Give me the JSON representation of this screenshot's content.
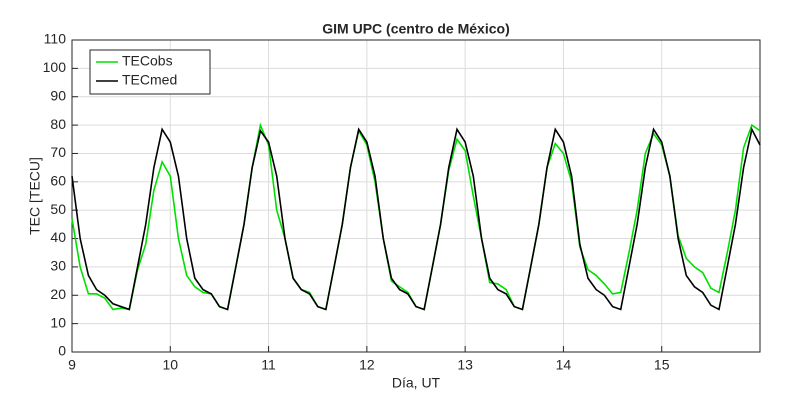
{
  "chart_data": {
    "type": "line",
    "title": "GIM UPC (centro de México)",
    "x_label": "Día, UT",
    "y_label": "TEC [TECU]",
    "x": [
      9,
      9.083,
      9.167,
      9.25,
      9.333,
      9.417,
      9.5,
      9.583,
      9.667,
      9.75,
      9.833,
      9.917,
      10,
      10.083,
      10.167,
      10.25,
      10.333,
      10.417,
      10.5,
      10.583,
      10.667,
      10.75,
      10.833,
      10.917,
      11,
      11.083,
      11.167,
      11.25,
      11.333,
      11.417,
      11.5,
      11.583,
      11.667,
      11.75,
      11.833,
      11.917,
      12,
      12.083,
      12.167,
      12.25,
      12.333,
      12.417,
      12.5,
      12.583,
      12.667,
      12.75,
      12.833,
      12.917,
      13,
      13.083,
      13.167,
      13.25,
      13.333,
      13.417,
      13.5,
      13.583,
      13.667,
      13.75,
      13.833,
      13.917,
      14,
      14.083,
      14.167,
      14.25,
      14.333,
      14.417,
      14.5,
      14.583,
      14.667,
      14.75,
      14.833,
      14.917,
      15,
      15.083,
      15.167,
      15.25,
      15.333,
      15.417,
      15.5,
      15.583,
      15.667,
      15.75,
      15.833,
      15.917,
      16
    ],
    "series": [
      {
        "name": "TECobs",
        "color": "#00e000",
        "values": [
          47,
          30,
          20.5,
          20.5,
          19,
          15,
          15.5,
          15,
          29,
          38,
          57,
          67,
          62,
          40,
          27,
          23,
          21,
          20.5,
          16,
          15,
          30,
          45,
          65,
          80,
          73,
          50,
          40,
          26,
          22,
          21,
          16,
          15,
          30,
          45,
          65,
          78,
          73,
          60,
          40,
          25,
          23,
          21,
          16,
          15,
          30,
          45,
          64,
          75,
          71,
          55,
          40,
          24.5,
          24,
          22,
          16,
          15,
          30,
          45,
          65,
          73.5,
          70,
          60,
          37,
          29,
          27,
          24,
          20.5,
          21,
          35,
          50,
          70,
          77,
          73,
          62,
          41,
          33,
          30,
          28,
          22.5,
          21,
          35,
          50,
          72,
          80,
          78
        ]
      },
      {
        "name": "TECmed",
        "color": "#000000",
        "values": [
          62,
          40,
          27,
          22,
          20,
          17,
          16,
          15,
          30,
          45,
          65,
          78.5,
          74,
          62,
          40,
          26,
          22,
          20.5,
          16,
          15,
          30,
          45,
          65,
          78,
          74,
          62,
          40,
          26,
          22,
          20.5,
          16,
          15,
          30,
          45,
          65,
          78.5,
          74,
          62,
          40,
          26,
          22,
          20.5,
          16,
          15,
          30,
          45,
          65,
          78.5,
          74,
          62,
          40,
          26,
          22,
          20.5,
          16,
          15,
          30,
          45,
          65,
          78.5,
          74,
          62,
          38,
          26,
          22,
          20,
          16,
          15,
          30,
          45,
          65,
          78.5,
          74,
          62,
          40,
          27,
          23,
          21,
          16.5,
          15,
          30,
          45,
          65,
          78.5,
          73
        ]
      }
    ],
    "xlim": [
      9,
      16
    ],
    "xticks": [
      9,
      10,
      11,
      12,
      13,
      14,
      15
    ],
    "ylim": [
      0,
      110
    ],
    "yticks": [
      0,
      10,
      20,
      30,
      40,
      50,
      60,
      70,
      80,
      90,
      100,
      110
    ],
    "grid": true,
    "legend": "upper-left"
  }
}
